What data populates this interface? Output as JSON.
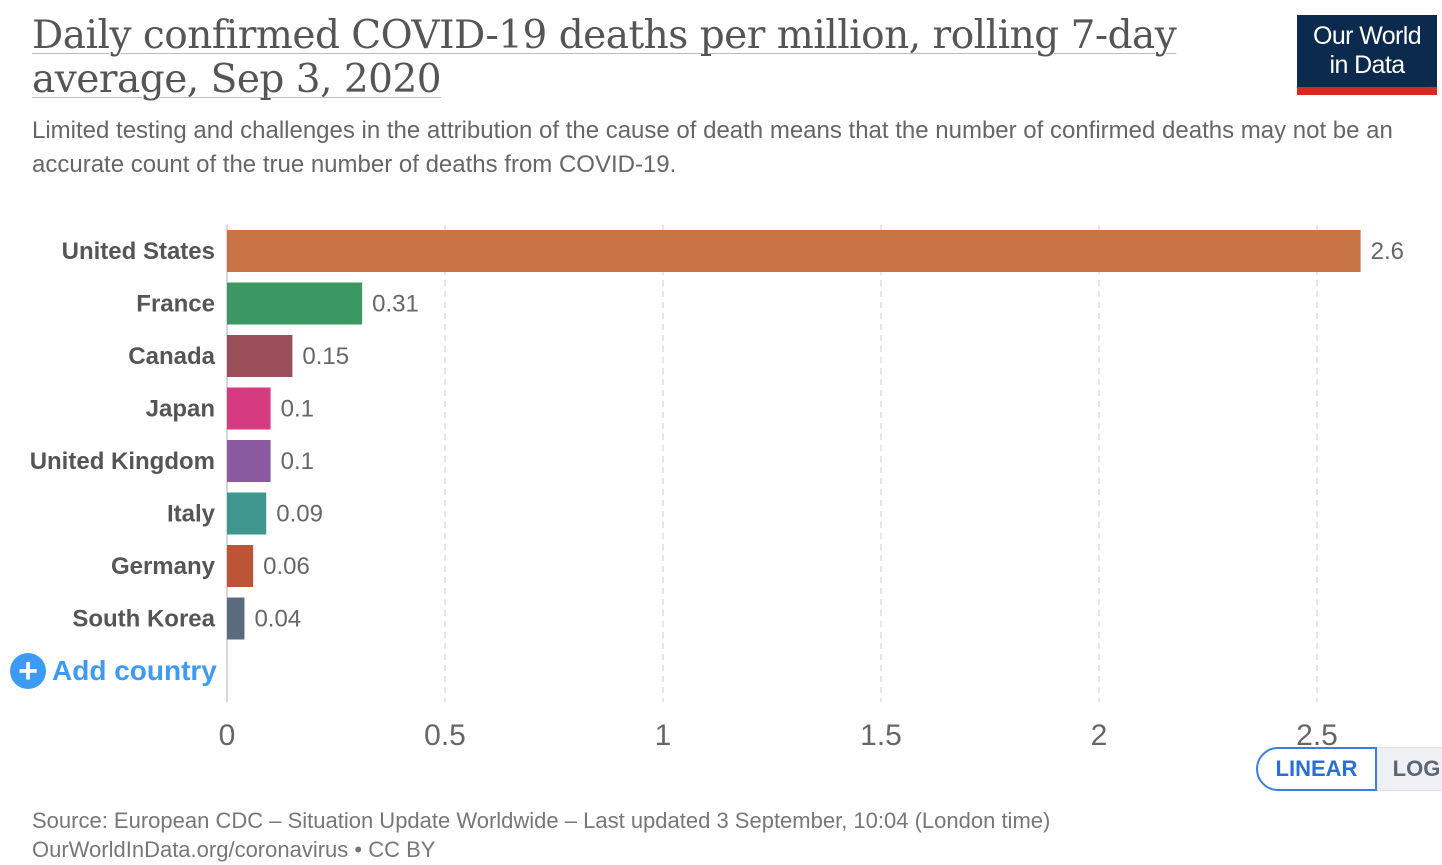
{
  "header": {
    "title": "Daily confirmed COVID-19 deaths per million, rolling 7-day average, Sep 3, 2020",
    "subtitle": "Limited testing and challenges in the attribution of the cause of death means that the number of confirmed deaths may not be an accurate count of the true number of deaths from COVID-19.",
    "logo_line1": "Our World",
    "logo_line2": "in Data"
  },
  "colors": {
    "logo_bg": "#0c2a4d",
    "logo_accent": "#d42b21",
    "link_blue": "#3d9af5"
  },
  "chart_data": {
    "type": "bar",
    "orientation": "horizontal",
    "title": "Daily confirmed COVID-19 deaths per million, rolling 7-day average, Sep 3, 2020",
    "xlabel": "",
    "ylabel": "",
    "xlim": [
      0,
      2.6
    ],
    "grid": true,
    "x_ticks": [
      0,
      0.5,
      1,
      1.5,
      2,
      2.5
    ],
    "x_tick_labels": [
      "0",
      "0.5",
      "1",
      "1.5",
      "2",
      "2.5"
    ],
    "categories": [
      "United States",
      "France",
      "Canada",
      "Japan",
      "United Kingdom",
      "Italy",
      "Germany",
      "South Korea"
    ],
    "values": [
      2.6,
      0.31,
      0.15,
      0.1,
      0.1,
      0.09,
      0.06,
      0.04
    ],
    "value_labels": [
      "2.6",
      "0.31",
      "0.15",
      "0.1",
      "0.1",
      "0.09",
      "0.06",
      "0.04"
    ],
    "bar_colors": [
      "#c87344",
      "#3c9862",
      "#9a4e5a",
      "#d63b82",
      "#8a5aa0",
      "#3f978e",
      "#bc5538",
      "#5b6b7e"
    ]
  },
  "controls": {
    "add_country_label": "Add country",
    "scale_options": [
      "LINEAR",
      "LOG"
    ],
    "scale_selected": "LINEAR"
  },
  "footer": {
    "source": "Source: European CDC – Situation Update Worldwide – Last updated 3 September, 10:04 (London time)",
    "credit": "OurWorldInData.org/coronavirus • CC BY"
  }
}
